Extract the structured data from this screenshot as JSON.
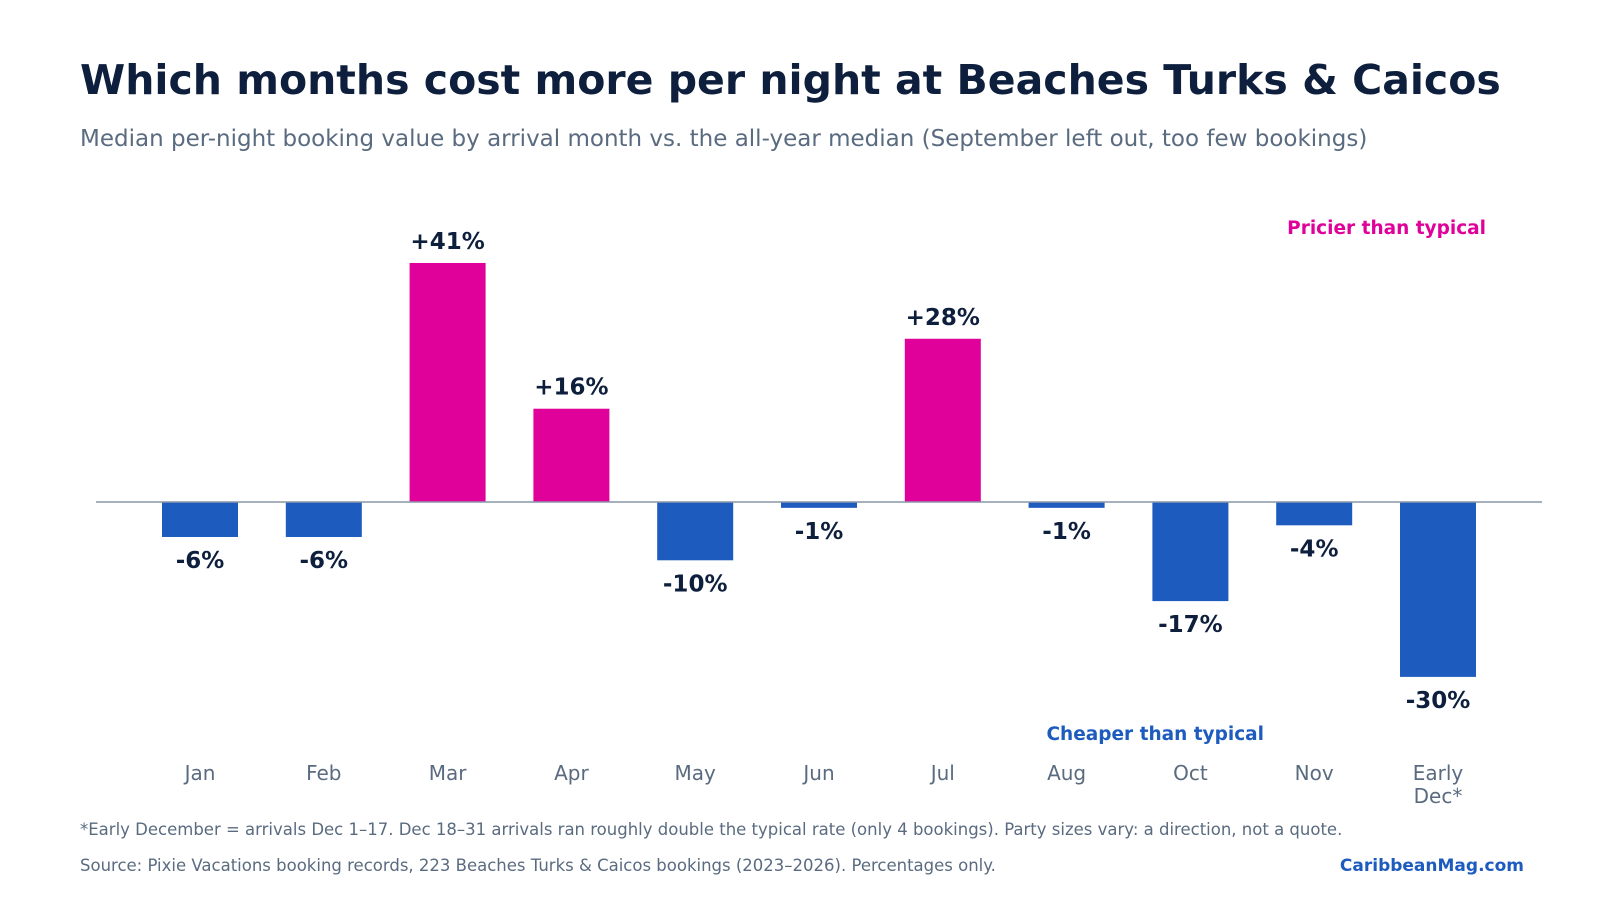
{
  "title": "Which months cost more per night at Beaches Turks & Caicos",
  "subtitle": "Median per-night booking value by arrival month vs. the all-year median (September left out, too few bookings)",
  "footnote": "*Early December = arrivals Dec 1–17. Dec 18–31 arrivals ran roughly double the typical rate (only 4 bookings). Party sizes vary: a direction, not a quote.",
  "source": "Source: Pixie Vacations booking records, 223 Beaches Turks & Caicos bookings (2023–2026). Percentages only.",
  "brand": "CaribbeanMag.com",
  "colors": {
    "positive": "#e0009a",
    "negative": "#1d5bbf",
    "text": "#0d1f3c",
    "muted": "#5a6b80",
    "baseline": "#8a97a8"
  },
  "chart_data": {
    "type": "bar",
    "categories": [
      "Jan",
      "Feb",
      "Mar",
      "Apr",
      "May",
      "Jun",
      "Jul",
      "Aug",
      "Oct",
      "Nov",
      "Early Dec*"
    ],
    "values": [
      -6,
      -6,
      41,
      16,
      -10,
      -1,
      28,
      -1,
      -17,
      -4,
      -30
    ],
    "labels": [
      "-6%",
      "-6%",
      "+41%",
      "+16%",
      "-10%",
      "-1%",
      "+28%",
      "-1%",
      "-17%",
      "-4%",
      "-30%"
    ],
    "annotations": {
      "positive": "Pricier than typical",
      "negative": "Cheaper than typical"
    },
    "ylim": [
      -30,
      41
    ],
    "grid": false,
    "xlabel": "",
    "ylabel": ""
  }
}
